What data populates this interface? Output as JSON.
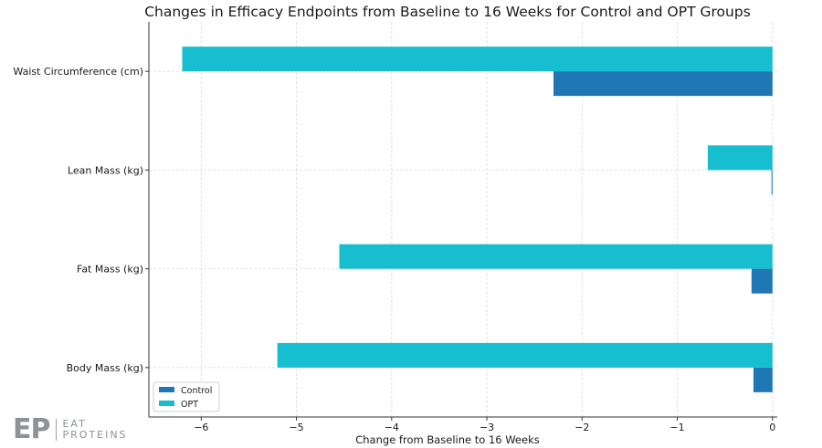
{
  "chart_data": {
    "type": "bar",
    "orientation": "horizontal",
    "title": "Changes in Efficacy Endpoints from Baseline to 16 Weeks for Control and OPT Groups",
    "xlabel": "Change from Baseline to 16 Weeks",
    "ylabel": "",
    "categories": [
      "Body Mass (kg)",
      "Fat Mass (kg)",
      "Lean Mass (kg)",
      "Waist Circumference (cm)"
    ],
    "series": [
      {
        "name": "Control",
        "color": "#1f77b4",
        "values": [
          -0.2,
          -0.22,
          -0.01,
          -2.3
        ]
      },
      {
        "name": "OPT",
        "color": "#17becf",
        "values": [
          -5.2,
          -4.55,
          -0.68,
          -6.2
        ]
      }
    ],
    "xlim": [
      -6.55,
      0.05
    ],
    "xticks": [
      -6,
      -5,
      -4,
      -3,
      -2,
      -1,
      0
    ],
    "xtick_labels": [
      "−6",
      "−5",
      "−4",
      "−3",
      "−2",
      "−1",
      "0"
    ],
    "grid": true,
    "legend": {
      "position": "lower-left",
      "entries": [
        "Control",
        "OPT"
      ]
    }
  },
  "watermark": {
    "mark": "EP",
    "line1": "EAT",
    "line2": "PROTEINS"
  }
}
